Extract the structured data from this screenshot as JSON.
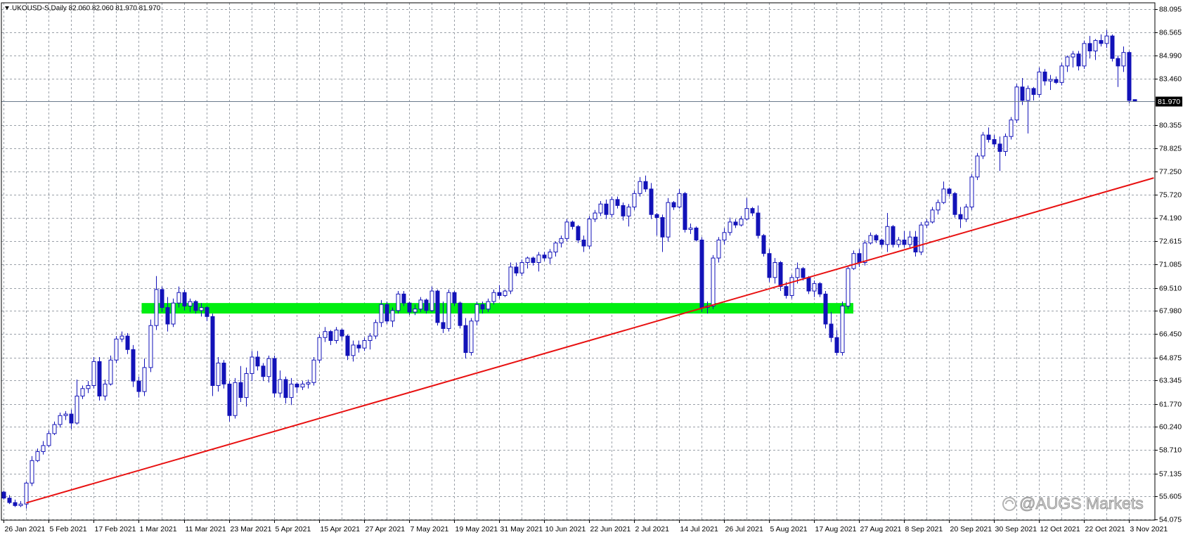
{
  "chart_data": {
    "type": "candlestick",
    "title": "UKOUSD-S,Daily  82.060 82.060 81.970 81.970",
    "watermark": "@AUGS Markets",
    "colors": {
      "outline": "#1212b8",
      "up_fill": "#ffffff",
      "down_fill": "#1212b8",
      "zone": "#00ee11",
      "trendline": "#e81010",
      "grid": "#9aa0a8",
      "last_price_line": "#6a7a8c"
    },
    "grid": true,
    "ylim": [
      54.03,
      88.51
    ],
    "yticks": [
      88.095,
      86.565,
      {
        "value": 84.99,
        "label": "84.990"
      },
      {
        "value": 83.46,
        "label": "83.460"
      },
      80.355,
      78.825,
      {
        "value": 77.25,
        "label": "77.250"
      },
      {
        "value": 75.72,
        "label": "75.720"
      },
      {
        "value": 74.19,
        "label": "74.190"
      },
      72.615,
      71.085,
      {
        "value": 69.51,
        "label": "69.510"
      },
      {
        "value": 67.98,
        "label": "67.980"
      },
      {
        "value": 66.45,
        "label": "66.450"
      },
      64.875,
      63.345,
      {
        "value": 61.77,
        "label": "61.770"
      },
      {
        "value": 60.24,
        "label": "60.240"
      },
      {
        "value": 58.71,
        "label": "58.710"
      },
      57.135,
      55.605,
      54.075
    ],
    "last_price": {
      "value": 81.97,
      "label": "81.970"
    },
    "support_zone": {
      "start": 24.5,
      "end": 151,
      "low": 67.8,
      "high": 68.5
    },
    "trendline": {
      "x": [
        4,
        204.4
      ],
      "y": [
        55.18,
        76.84
      ]
    },
    "categories": [
      "26 Jan 2021",
      null,
      null,
      null,
      null,
      null,
      null,
      null,
      "5 Feb 2021",
      null,
      null,
      null,
      null,
      null,
      null,
      null,
      "17 Feb 2021",
      null,
      null,
      null,
      null,
      null,
      null,
      null,
      "1 Mar 2021",
      null,
      null,
      null,
      null,
      null,
      null,
      null,
      "11 Mar 2021",
      null,
      null,
      null,
      null,
      null,
      null,
      null,
      "23 Mar 2021",
      null,
      null,
      null,
      null,
      null,
      null,
      null,
      "5 Apr 2021",
      null,
      null,
      null,
      null,
      null,
      null,
      null,
      "15 Apr 2021",
      null,
      null,
      null,
      null,
      null,
      null,
      null,
      "27 Apr 2021",
      null,
      null,
      null,
      null,
      null,
      null,
      null,
      "7 May 2021",
      null,
      null,
      null,
      null,
      null,
      null,
      null,
      "19 May 2021",
      null,
      null,
      null,
      null,
      null,
      null,
      null,
      "31 May 2021",
      null,
      null,
      null,
      null,
      null,
      null,
      null,
      "10 Jun 2021",
      null,
      null,
      null,
      null,
      null,
      null,
      null,
      "22 Jun 2021",
      null,
      null,
      null,
      null,
      null,
      null,
      null,
      "2 Jul 2021",
      null,
      null,
      null,
      null,
      null,
      null,
      null,
      "14 Jul 2021",
      null,
      null,
      null,
      null,
      null,
      null,
      null,
      "26 Jul 2021",
      null,
      null,
      null,
      null,
      null,
      null,
      null,
      "5 Aug 2021",
      null,
      null,
      null,
      null,
      null,
      null,
      null,
      "17 Aug 2021",
      null,
      null,
      null,
      null,
      null,
      null,
      null,
      "27 Aug 2021",
      null,
      null,
      null,
      null,
      null,
      null,
      null,
      "8 Sep 2021",
      null,
      null,
      null,
      null,
      null,
      null,
      null,
      "20 Sep 2021",
      null,
      null,
      null,
      null,
      null,
      null,
      null,
      "30 Sep 2021",
      null,
      null,
      null,
      null,
      null,
      null,
      null,
      "12 Oct 2021",
      null,
      null,
      null,
      null,
      null,
      null,
      null,
      "22 Oct 2021",
      null,
      null,
      null,
      null,
      null,
      null,
      null,
      "3 Nov 2021",
      null
    ],
    "ohlc": [
      [
        55.9,
        56.0,
        55.4,
        55.5
      ],
      [
        55.5,
        55.7,
        55.1,
        55.2
      ],
      [
        55.2,
        55.4,
        54.9,
        55.0
      ],
      [
        55.0,
        55.3,
        54.9,
        55.1
      ],
      [
        55.1,
        56.6,
        54.8,
        56.5
      ],
      [
        56.5,
        58.3,
        56.3,
        58.0
      ],
      [
        58.0,
        58.8,
        57.9,
        58.6
      ],
      [
        58.6,
        59.3,
        58.4,
        59.0
      ],
      [
        59.0,
        60.0,
        58.9,
        59.8
      ],
      [
        59.8,
        60.6,
        59.7,
        60.4
      ],
      [
        60.4,
        61.2,
        60.2,
        61.0
      ],
      [
        61.0,
        61.3,
        60.7,
        61.1
      ],
      [
        61.1,
        61.4,
        60.1,
        60.5
      ],
      [
        60.5,
        63.4,
        60.4,
        62.3
      ],
      [
        62.3,
        63.0,
        62.1,
        62.8
      ],
      [
        62.8,
        63.3,
        62.5,
        63.0
      ],
      [
        63.0,
        64.9,
        62.8,
        64.6
      ],
      [
        64.6,
        64.9,
        62.0,
        62.3
      ],
      [
        62.3,
        63.4,
        62.0,
        63.1
      ],
      [
        63.1,
        65.0,
        63.0,
        64.7
      ],
      [
        64.7,
        66.3,
        64.5,
        66.1
      ],
      [
        66.1,
        66.6,
        65.9,
        66.3
      ],
      [
        66.3,
        66.5,
        65.1,
        65.4
      ],
      [
        65.4,
        65.7,
        62.9,
        63.3
      ],
      [
        63.3,
        63.6,
        62.2,
        62.6
      ],
      [
        62.6,
        64.8,
        62.3,
        64.2
      ],
      [
        64.2,
        67.4,
        63.9,
        67.0
      ],
      [
        67.0,
        70.3,
        66.7,
        69.4
      ],
      [
        69.4,
        69.6,
        67.9,
        68.2
      ],
      [
        68.2,
        68.9,
        66.6,
        67.1
      ],
      [
        67.1,
        68.8,
        66.9,
        68.5
      ],
      [
        68.5,
        69.6,
        68.2,
        69.2
      ],
      [
        69.2,
        69.4,
        68.0,
        68.3
      ],
      [
        68.3,
        68.8,
        67.9,
        68.6
      ],
      [
        68.6,
        68.7,
        67.8,
        68.0
      ],
      [
        68.0,
        68.5,
        67.6,
        68.2
      ],
      [
        68.2,
        68.3,
        67.3,
        67.6
      ],
      [
        67.6,
        67.8,
        62.3,
        63.0
      ],
      [
        63.0,
        64.9,
        62.6,
        64.5
      ],
      [
        64.5,
        64.7,
        62.8,
        63.1
      ],
      [
        63.1,
        63.3,
        60.6,
        61.0
      ],
      [
        61.0,
        63.5,
        60.8,
        63.2
      ],
      [
        63.2,
        64.3,
        61.9,
        62.2
      ],
      [
        62.2,
        64.2,
        61.6,
        63.8
      ],
      [
        63.8,
        65.3,
        63.3,
        64.9
      ],
      [
        64.9,
        65.3,
        64.0,
        64.3
      ],
      [
        64.3,
        64.5,
        63.3,
        63.6
      ],
      [
        63.6,
        65.0,
        63.2,
        64.8
      ],
      [
        64.8,
        65.0,
        62.2,
        62.5
      ],
      [
        62.5,
        64.0,
        62.2,
        63.4
      ],
      [
        63.4,
        63.6,
        61.8,
        62.2
      ],
      [
        62.2,
        63.5,
        61.7,
        63.1
      ],
      [
        63.1,
        63.2,
        62.5,
        62.9
      ],
      [
        62.9,
        63.3,
        62.7,
        63.1
      ],
      [
        63.1,
        63.4,
        62.8,
        63.2
      ],
      [
        63.2,
        64.9,
        63.0,
        64.7
      ],
      [
        64.7,
        66.4,
        64.5,
        66.2
      ],
      [
        66.2,
        66.9,
        65.9,
        66.6
      ],
      [
        66.6,
        66.7,
        65.7,
        66.0
      ],
      [
        66.0,
        66.9,
        65.8,
        66.7
      ],
      [
        66.7,
        66.8,
        66.0,
        66.3
      ],
      [
        66.3,
        66.4,
        64.7,
        65.0
      ],
      [
        65.0,
        66.0,
        64.6,
        65.7
      ],
      [
        65.7,
        66.0,
        65.2,
        65.5
      ],
      [
        65.5,
        66.2,
        65.3,
        66.0
      ],
      [
        66.0,
        66.5,
        65.4,
        66.3
      ],
      [
        66.3,
        67.4,
        66.1,
        67.2
      ],
      [
        67.2,
        68.7,
        66.9,
        68.4
      ],
      [
        68.4,
        68.6,
        67.1,
        67.3
      ],
      [
        67.3,
        68.2,
        66.9,
        68.0
      ],
      [
        68.0,
        69.3,
        67.8,
        69.1
      ],
      [
        69.1,
        69.3,
        68.3,
        68.5
      ],
      [
        68.5,
        68.6,
        67.7,
        67.9
      ],
      [
        67.9,
        68.4,
        67.7,
        68.1
      ],
      [
        68.1,
        68.9,
        67.9,
        68.7
      ],
      [
        68.7,
        68.8,
        67.8,
        68.0
      ],
      [
        68.0,
        69.6,
        67.9,
        69.3
      ],
      [
        69.3,
        69.4,
        67.0,
        67.2
      ],
      [
        67.2,
        68.6,
        66.5,
        66.8
      ],
      [
        66.8,
        69.4,
        66.6,
        69.2
      ],
      [
        69.2,
        69.3,
        68.3,
        68.5
      ],
      [
        68.5,
        68.6,
        66.8,
        67.0
      ],
      [
        67.0,
        67.5,
        64.8,
        65.2
      ],
      [
        65.2,
        67.5,
        65.0,
        67.3
      ],
      [
        67.3,
        68.6,
        67.0,
        68.4
      ],
      [
        68.4,
        68.6,
        67.8,
        68.1
      ],
      [
        68.1,
        68.8,
        67.9,
        68.6
      ],
      [
        68.6,
        69.4,
        68.4,
        69.2
      ],
      [
        69.2,
        69.7,
        68.8,
        69.0
      ],
      [
        69.0,
        69.4,
        68.9,
        69.3
      ],
      [
        69.3,
        71.2,
        69.1,
        70.9
      ],
      [
        70.9,
        71.2,
        70.3,
        70.5
      ],
      [
        70.5,
        71.4,
        70.3,
        71.2
      ],
      [
        71.2,
        71.6,
        70.8,
        71.5
      ],
      [
        71.5,
        71.6,
        71.0,
        71.2
      ],
      [
        71.2,
        71.9,
        70.6,
        71.7
      ],
      [
        71.7,
        71.9,
        71.3,
        71.5
      ],
      [
        71.5,
        72.1,
        71.1,
        71.9
      ],
      [
        71.9,
        72.6,
        71.6,
        72.5
      ],
      [
        72.5,
        73.0,
        72.2,
        72.8
      ],
      [
        72.8,
        74.1,
        72.6,
        73.9
      ],
      [
        73.9,
        74.0,
        73.4,
        73.6
      ],
      [
        73.6,
        73.7,
        72.5,
        72.7
      ],
      [
        72.7,
        73.0,
        71.9,
        72.3
      ],
      [
        72.3,
        74.3,
        72.1,
        74.1
      ],
      [
        74.1,
        74.7,
        73.9,
        74.5
      ],
      [
        74.5,
        75.3,
        74.3,
        75.1
      ],
      [
        75.1,
        75.4,
        74.1,
        74.4
      ],
      [
        74.4,
        75.6,
        74.2,
        75.4
      ],
      [
        75.4,
        75.6,
        74.8,
        75.0
      ],
      [
        75.0,
        75.2,
        74.0,
        74.3
      ],
      [
        74.3,
        75.1,
        73.6,
        74.9
      ],
      [
        74.9,
        76.0,
        74.7,
        75.8
      ],
      [
        75.8,
        76.9,
        75.6,
        76.6
      ],
      [
        76.6,
        77.0,
        75.9,
        76.1
      ],
      [
        76.1,
        76.5,
        74.1,
        74.4
      ],
      [
        74.4,
        74.5,
        73.0,
        74.2
      ],
      [
        74.2,
        74.4,
        71.9,
        72.9
      ],
      [
        72.9,
        75.5,
        72.6,
        75.2
      ],
      [
        75.2,
        75.3,
        74.7,
        74.9
      ],
      [
        74.9,
        76.1,
        74.8,
        75.8
      ],
      [
        75.8,
        75.9,
        73.2,
        73.4
      ],
      [
        73.4,
        73.8,
        73.1,
        73.5
      ],
      [
        73.5,
        73.6,
        72.6,
        72.7
      ],
      [
        72.7,
        72.9,
        67.9,
        68.2
      ],
      [
        68.2,
        68.6,
        67.8,
        68.3
      ],
      [
        68.3,
        71.7,
        68.1,
        71.5
      ],
      [
        71.5,
        72.9,
        71.2,
        72.7
      ],
      [
        72.7,
        73.5,
        72.4,
        73.2
      ],
      [
        73.2,
        74.2,
        73.0,
        73.9
      ],
      [
        73.9,
        74.1,
        73.5,
        73.7
      ],
      [
        73.7,
        74.3,
        73.6,
        74.1
      ],
      [
        74.1,
        75.5,
        74.0,
        74.8
      ],
      [
        74.8,
        74.9,
        74.3,
        74.5
      ],
      [
        74.5,
        75.0,
        72.8,
        73.0
      ],
      [
        73.0,
        73.1,
        71.6,
        71.8
      ],
      [
        71.8,
        72.1,
        69.9,
        70.2
      ],
      [
        70.2,
        71.5,
        69.8,
        71.2
      ],
      [
        71.2,
        71.3,
        69.3,
        69.6
      ],
      [
        69.6,
        69.9,
        68.8,
        69.0
      ],
      [
        69.0,
        70.4,
        68.8,
        70.2
      ],
      [
        70.2,
        71.2,
        69.8,
        70.8
      ],
      [
        70.8,
        70.9,
        70.0,
        70.2
      ],
      [
        70.2,
        70.3,
        69.1,
        69.3
      ],
      [
        69.3,
        70.0,
        68.9,
        69.8
      ],
      [
        69.8,
        69.9,
        68.9,
        69.1
      ],
      [
        69.1,
        69.3,
        66.8,
        67.1
      ],
      [
        67.1,
        67.9,
        65.9,
        66.2
      ],
      [
        66.2,
        66.7,
        65.0,
        65.2
      ],
      [
        65.2,
        68.6,
        65.0,
        68.3
      ],
      [
        68.3,
        71.0,
        68.1,
        70.8
      ],
      [
        70.8,
        72.0,
        70.7,
        71.8
      ],
      [
        71.8,
        72.1,
        70.9,
        71.2
      ],
      [
        71.2,
        72.7,
        71.0,
        72.5
      ],
      [
        72.5,
        73.2,
        72.4,
        73.0
      ],
      [
        73.0,
        73.1,
        72.5,
        72.7
      ],
      [
        72.7,
        72.8,
        72.2,
        72.4
      ],
      [
        72.4,
        74.5,
        71.9,
        73.6
      ],
      [
        73.6,
        73.7,
        72.2,
        72.4
      ],
      [
        72.4,
        72.9,
        72.2,
        72.7
      ],
      [
        72.7,
        73.3,
        72.2,
        72.4
      ],
      [
        72.4,
        73.3,
        72.2,
        72.9
      ],
      [
        72.9,
        73.3,
        71.6,
        71.9
      ],
      [
        71.9,
        73.9,
        71.7,
        73.7
      ],
      [
        73.7,
        74.1,
        73.5,
        73.9
      ],
      [
        73.9,
        74.9,
        73.8,
        74.7
      ],
      [
        74.7,
        75.4,
        74.4,
        75.2
      ],
      [
        75.2,
        76.6,
        75.1,
        76.1
      ],
      [
        76.1,
        76.2,
        75.6,
        75.8
      ],
      [
        75.8,
        75.9,
        74.2,
        74.4
      ],
      [
        74.4,
        74.9,
        73.5,
        74.1
      ],
      [
        74.1,
        75.1,
        73.9,
        74.9
      ],
      [
        74.9,
        77.1,
        74.7,
        76.9
      ],
      [
        76.9,
        78.5,
        76.7,
        78.3
      ],
      [
        78.3,
        79.9,
        78.1,
        79.7
      ],
      [
        79.7,
        80.2,
        79.2,
        79.4
      ],
      [
        79.4,
        79.7,
        78.9,
        79.1
      ],
      [
        79.1,
        79.6,
        77.3,
        78.6
      ],
      [
        78.6,
        79.8,
        78.3,
        79.6
      ],
      [
        79.6,
        80.9,
        79.4,
        80.7
      ],
      [
        80.7,
        83.1,
        80.5,
        82.9
      ],
      [
        82.9,
        83.5,
        81.7,
        82.0
      ],
      [
        82.0,
        83.0,
        79.8,
        82.8
      ],
      [
        82.8,
        82.9,
        82.0,
        82.4
      ],
      [
        82.4,
        84.2,
        82.2,
        83.9
      ],
      [
        83.9,
        84.1,
        83.0,
        83.3
      ],
      [
        83.3,
        83.7,
        82.7,
        83.4
      ],
      [
        83.4,
        83.6,
        83.1,
        83.2
      ],
      [
        83.2,
        84.5,
        83.0,
        84.3
      ],
      [
        84.3,
        85.0,
        83.9,
        84.9
      ],
      [
        84.9,
        85.3,
        84.2,
        85.1
      ],
      [
        85.1,
        85.3,
        84.0,
        84.3
      ],
      [
        84.3,
        86.0,
        84.1,
        85.8
      ],
      [
        85.8,
        86.3,
        84.8,
        85.3
      ],
      [
        85.3,
        86.1,
        84.7,
        86.0
      ],
      [
        86.0,
        86.4,
        85.6,
        85.8
      ],
      [
        85.8,
        86.7,
        85.5,
        86.3
      ],
      [
        86.3,
        86.4,
        84.6,
        84.8
      ],
      [
        84.8,
        85.0,
        82.9,
        84.3
      ],
      [
        84.3,
        85.6,
        83.9,
        85.2
      ],
      [
        85.2,
        85.3,
        81.8,
        82.0
      ],
      [
        82.06,
        82.06,
        81.97,
        81.97
      ]
    ]
  }
}
